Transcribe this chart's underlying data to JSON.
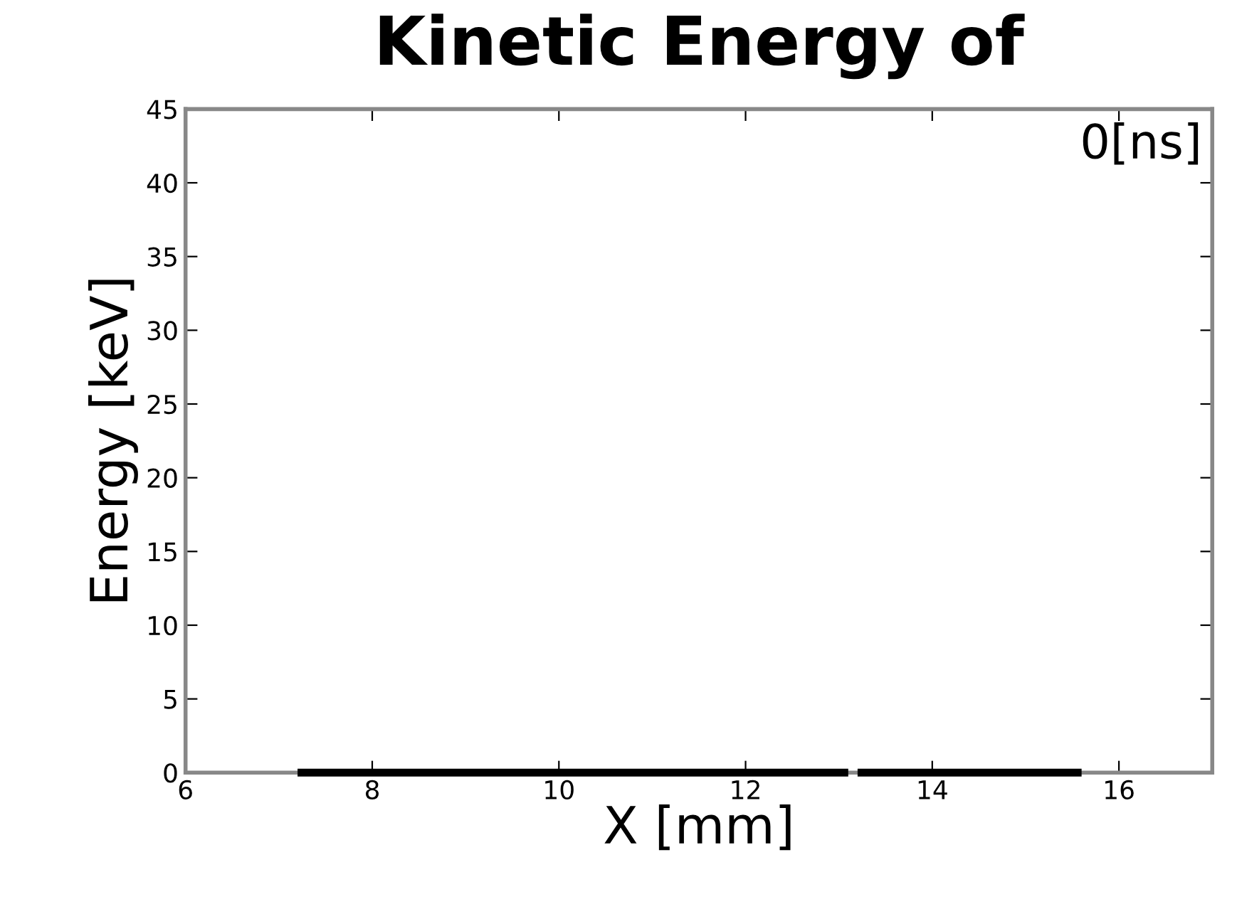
{
  "chart_data": {
    "type": "line",
    "title": "Kinetic Energy of",
    "xlabel": "X [mm]",
    "ylabel": "Energy [keV]",
    "annotations": [
      "0[ns]"
    ],
    "series": [
      {
        "color": "#000000",
        "x": [
          7.2,
          13.1,
          13.15,
          13.2,
          15.6
        ],
        "values": [
          0,
          0,
          null,
          0,
          0
        ]
      }
    ],
    "xlim": [
      6,
      17
    ],
    "xticks": [
      6,
      8,
      10,
      12,
      14,
      16
    ],
    "ylim": [
      0,
      45
    ],
    "yticks": [
      0,
      5,
      10,
      15,
      20,
      25,
      30,
      35,
      40,
      45
    ],
    "grid": false,
    "legend": false,
    "marker": "none",
    "line_style": "solid"
  }
}
